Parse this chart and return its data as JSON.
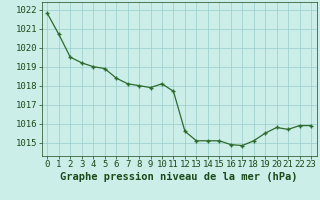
{
  "x": [
    0,
    1,
    2,
    3,
    4,
    5,
    6,
    7,
    8,
    9,
    10,
    11,
    12,
    13,
    14,
    15,
    16,
    17,
    18,
    19,
    20,
    21,
    22,
    23
  ],
  "y": [
    1021.8,
    1020.7,
    1019.5,
    1019.2,
    1019.0,
    1018.9,
    1018.4,
    1018.1,
    1018.0,
    1017.9,
    1018.1,
    1017.7,
    1015.6,
    1015.1,
    1015.1,
    1015.1,
    1014.9,
    1014.85,
    1015.1,
    1015.5,
    1015.8,
    1015.7,
    1015.9,
    1015.9
  ],
  "line_color": "#2d6a2d",
  "marker_color": "#2d6a2d",
  "bg_color": "#cceee8",
  "grid_color": "#99cccc",
  "axis_label_color": "#1a4a1a",
  "xlabel": "Graphe pression niveau de la mer (hPa)",
  "ylim_min": 1014.3,
  "ylim_max": 1022.4,
  "yticks": [
    1015,
    1016,
    1017,
    1018,
    1019,
    1020,
    1021,
    1022
  ],
  "tick_fontsize": 6.5,
  "xlabel_fontsize": 7.5
}
